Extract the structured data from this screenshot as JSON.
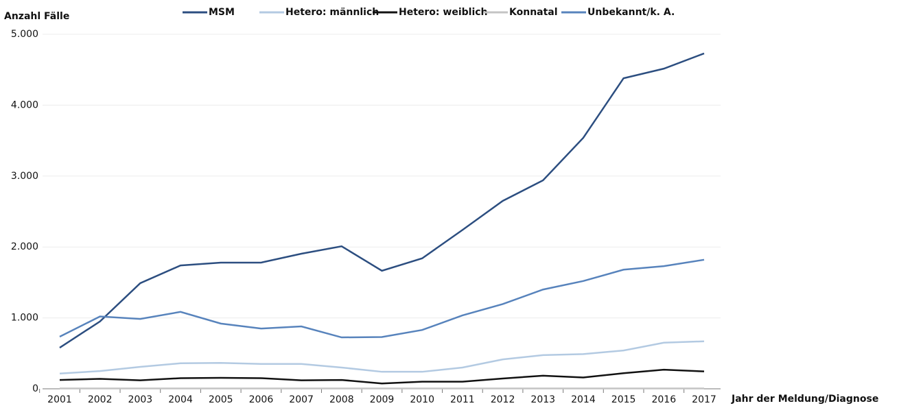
{
  "chart_data": {
    "type": "line",
    "ylabel": "Anzahl Fälle",
    "xlabel": "Jahr der Meldung/Diagnose",
    "x": [
      2001,
      2002,
      2003,
      2004,
      2005,
      2006,
      2007,
      2008,
      2009,
      2010,
      2011,
      2012,
      2013,
      2014,
      2015,
      2016,
      2017
    ],
    "series": [
      {
        "name": "MSM",
        "color": "#2c4e80",
        "values": [
          580,
          950,
          1490,
          1740,
          1780,
          1780,
          1905,
          2010,
          1665,
          1840,
          2240,
          2650,
          2940,
          3540,
          4380,
          4515,
          4730
        ]
      },
      {
        "name": "Hetero: männlich",
        "color": "#b3cae2",
        "values": [
          215,
          250,
          310,
          360,
          365,
          350,
          350,
          300,
          240,
          240,
          300,
          415,
          475,
          490,
          540,
          650,
          670
        ]
      },
      {
        "name": "Hetero: weiblich",
        "color": "#111111",
        "values": [
          125,
          140,
          120,
          150,
          155,
          150,
          120,
          125,
          75,
          100,
          100,
          145,
          185,
          160,
          220,
          270,
          245
        ]
      },
      {
        "name": "Konnatal",
        "color": "#c4c4c4",
        "values": [
          5,
          5,
          5,
          5,
          5,
          5,
          5,
          5,
          5,
          5,
          5,
          5,
          5,
          5,
          5,
          5,
          5
        ]
      },
      {
        "name": "Unbekannt/k. A.",
        "color": "#5783bc",
        "values": [
          735,
          1020,
          985,
          1085,
          920,
          850,
          880,
          725,
          730,
          830,
          1035,
          1195,
          1400,
          1520,
          1680,
          1730,
          1820
        ]
      }
    ],
    "ylim": [
      0,
      5000
    ],
    "yticks": [
      0,
      {
        "value": 1000,
        "label": "1.000"
      },
      {
        "value": 2000,
        "label": "2.000"
      },
      {
        "value": 3000,
        "label": "3.000"
      },
      {
        "value": 4000,
        "label": "4.000"
      },
      {
        "value": 5000,
        "label": "5.000"
      }
    ],
    "grid": true
  }
}
